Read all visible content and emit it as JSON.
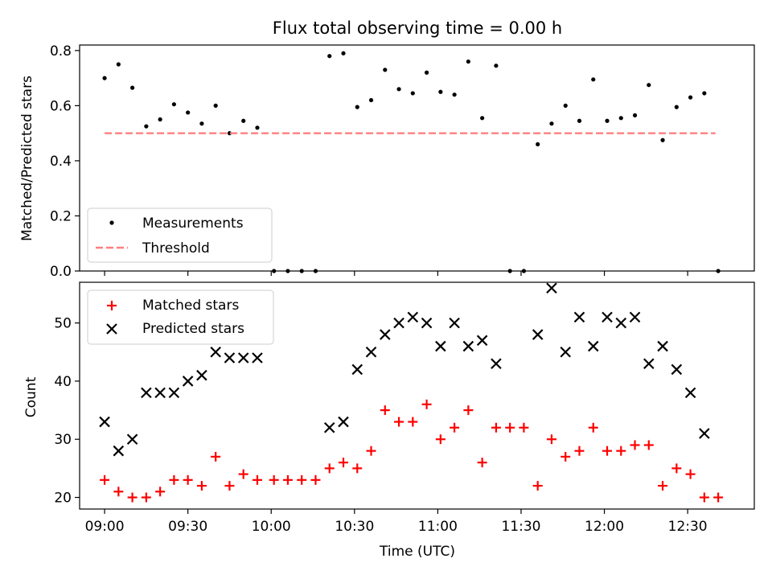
{
  "chart_data": [
    {
      "type": "scatter",
      "title": "Flux total observing time = 0.00 h",
      "xlabel": "",
      "ylabel": "Matched/Predicted stars",
      "xlim": [
        "08:51",
        "12:54"
      ],
      "ylim": [
        0,
        0.82
      ],
      "yticks": [
        "0.0",
        "0.2",
        "0.4",
        "0.6",
        "0.8"
      ],
      "grid": false,
      "legend_position": "lower-left",
      "series": [
        {
          "name": "Measurements",
          "marker": "dot",
          "color": "#000000",
          "points": [
            [
              "09:00",
              0.7
            ],
            [
              "09:05",
              0.75
            ],
            [
              "09:10",
              0.665
            ],
            [
              "09:15",
              0.525
            ],
            [
              "09:20",
              0.55
            ],
            [
              "09:25",
              0.605
            ],
            [
              "09:30",
              0.575
            ],
            [
              "09:35",
              0.535
            ],
            [
              "09:40",
              0.6
            ],
            [
              "09:45",
              0.5
            ],
            [
              "09:50",
              0.545
            ],
            [
              "09:55",
              0.52
            ],
            [
              "10:01",
              0.0
            ],
            [
              "10:06",
              0.0
            ],
            [
              "10:11",
              0.0
            ],
            [
              "10:16",
              0.0
            ],
            [
              "10:21",
              0.78
            ],
            [
              "10:26",
              0.79
            ],
            [
              "10:31",
              0.595
            ],
            [
              "10:36",
              0.62
            ],
            [
              "10:41",
              0.73
            ],
            [
              "10:46",
              0.66
            ],
            [
              "10:51",
              0.645
            ],
            [
              "10:56",
              0.72
            ],
            [
              "11:01",
              0.65
            ],
            [
              "11:06",
              0.64
            ],
            [
              "11:11",
              0.76
            ],
            [
              "11:16",
              0.555
            ],
            [
              "11:21",
              0.745
            ],
            [
              "11:26",
              0.0
            ],
            [
              "11:31",
              0.0
            ],
            [
              "11:36",
              0.46
            ],
            [
              "11:41",
              0.535
            ],
            [
              "11:46",
              0.6
            ],
            [
              "11:51",
              0.545
            ],
            [
              "11:56",
              0.695
            ],
            [
              "12:01",
              0.545
            ],
            [
              "12:06",
              0.555
            ],
            [
              "12:11",
              0.565
            ],
            [
              "12:16",
              0.675
            ],
            [
              "12:21",
              0.475
            ],
            [
              "12:26",
              0.595
            ],
            [
              "12:31",
              0.63
            ],
            [
              "12:36",
              0.645
            ],
            [
              "12:41",
              0.0
            ]
          ]
        },
        {
          "name": "Threshold",
          "line_style": "dashed",
          "color": "#ff7f7f",
          "points": [
            [
              "09:00",
              0.5
            ],
            [
              "12:40",
              0.5
            ]
          ]
        }
      ]
    },
    {
      "type": "scatter",
      "title": "",
      "xlabel": "Time (UTC)",
      "ylabel": "Count",
      "xlim": [
        "08:51",
        "12:54"
      ],
      "ylim": [
        18,
        57
      ],
      "yticks": [
        "20",
        "30",
        "40",
        "50"
      ],
      "xticks": [
        "09:00",
        "09:30",
        "10:00",
        "10:30",
        "11:00",
        "11:30",
        "12:00",
        "12:30"
      ],
      "grid": false,
      "legend_position": "upper-left",
      "series": [
        {
          "name": "Matched stars",
          "marker": "plus",
          "color": "#ff0000",
          "points": [
            [
              "09:00",
              23
            ],
            [
              "09:05",
              21
            ],
            [
              "09:10",
              20
            ],
            [
              "09:15",
              20
            ],
            [
              "09:20",
              21
            ],
            [
              "09:25",
              23
            ],
            [
              "09:30",
              23
            ],
            [
              "09:35",
              22
            ],
            [
              "09:40",
              27
            ],
            [
              "09:45",
              22
            ],
            [
              "09:50",
              24
            ],
            [
              "09:55",
              23
            ],
            [
              "10:01",
              23
            ],
            [
              "10:06",
              23
            ],
            [
              "10:11",
              23
            ],
            [
              "10:16",
              23
            ],
            [
              "10:21",
              25
            ],
            [
              "10:26",
              26
            ],
            [
              "10:31",
              25
            ],
            [
              "10:36",
              28
            ],
            [
              "10:41",
              35
            ],
            [
              "10:46",
              33
            ],
            [
              "10:51",
              33
            ],
            [
              "10:56",
              36
            ],
            [
              "11:01",
              30
            ],
            [
              "11:06",
              32
            ],
            [
              "11:11",
              35
            ],
            [
              "11:16",
              26
            ],
            [
              "11:21",
              32
            ],
            [
              "11:26",
              32
            ],
            [
              "11:31",
              32
            ],
            [
              "11:36",
              22
            ],
            [
              "11:41",
              30
            ],
            [
              "11:46",
              27
            ],
            [
              "11:51",
              28
            ],
            [
              "11:56",
              32
            ],
            [
              "12:01",
              28
            ],
            [
              "12:06",
              28
            ],
            [
              "12:11",
              29
            ],
            [
              "12:16",
              29
            ],
            [
              "12:21",
              22
            ],
            [
              "12:26",
              25
            ],
            [
              "12:31",
              24
            ],
            [
              "12:36",
              20
            ],
            [
              "12:41",
              20
            ]
          ]
        },
        {
          "name": "Predicted stars",
          "marker": "x",
          "color": "#000000",
          "points": [
            [
              "09:00",
              33
            ],
            [
              "09:05",
              28
            ],
            [
              "09:10",
              30
            ],
            [
              "09:15",
              38
            ],
            [
              "09:20",
              38
            ],
            [
              "09:25",
              38
            ],
            [
              "09:30",
              40
            ],
            [
              "09:35",
              41
            ],
            [
              "09:40",
              45
            ],
            [
              "09:45",
              44
            ],
            [
              "09:50",
              44
            ],
            [
              "09:55",
              44
            ],
            [
              "10:21",
              32
            ],
            [
              "10:26",
              33
            ],
            [
              "10:31",
              42
            ],
            [
              "10:36",
              45
            ],
            [
              "10:41",
              48
            ],
            [
              "10:46",
              50
            ],
            [
              "10:51",
              51
            ],
            [
              "10:56",
              50
            ],
            [
              "11:01",
              46
            ],
            [
              "11:06",
              50
            ],
            [
              "11:11",
              46
            ],
            [
              "11:16",
              47
            ],
            [
              "11:21",
              43
            ],
            [
              "11:36",
              48
            ],
            [
              "11:41",
              56
            ],
            [
              "11:46",
              45
            ],
            [
              "11:51",
              51
            ],
            [
              "11:56",
              46
            ],
            [
              "12:01",
              51
            ],
            [
              "12:06",
              50
            ],
            [
              "12:11",
              51
            ],
            [
              "12:16",
              43
            ],
            [
              "12:21",
              46
            ],
            [
              "12:26",
              42
            ],
            [
              "12:31",
              38
            ],
            [
              "12:36",
              31
            ]
          ]
        }
      ]
    }
  ]
}
